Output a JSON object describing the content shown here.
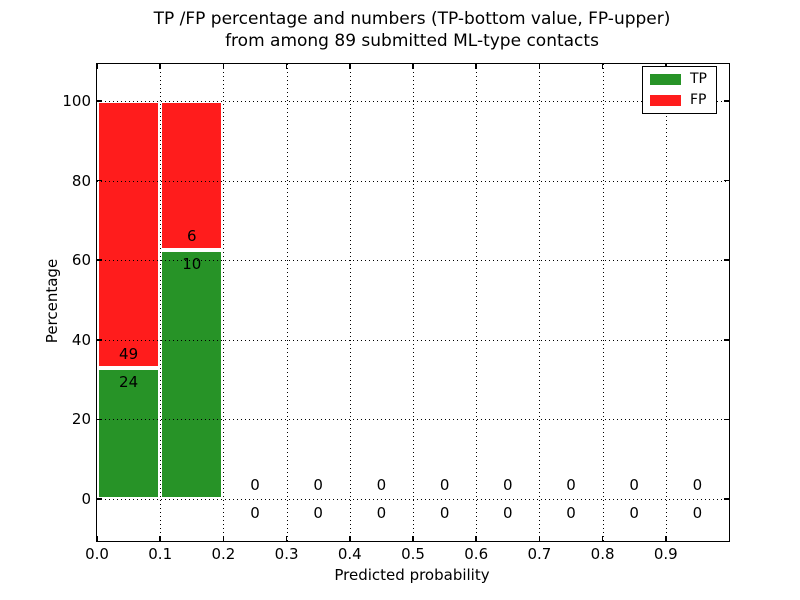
{
  "chart_data": {
    "type": "bar",
    "stacked": true,
    "title_line1": "TP /FP percentage and numbers (TP-bottom value, FP-upper)",
    "title_line2": "from among 89 submitted ML-type contacts",
    "total_submitted_contacts": 89,
    "xlabel": "Predicted probability",
    "ylabel": "Percentage",
    "xlim": [
      0.0,
      1.0
    ],
    "ylim": [
      -10.5,
      109.5
    ],
    "grid": "dotted, on top of bars",
    "xticks": [
      "0.0",
      "0.1",
      "0.2",
      "0.3",
      "0.4",
      "0.5",
      "0.6",
      "0.7",
      "0.8",
      "0.9"
    ],
    "yticks": [
      0,
      20,
      40,
      60,
      80,
      100
    ],
    "legend": {
      "position": "upper right",
      "entries": [
        {
          "label": "TP",
          "color": "#279327"
        },
        {
          "label": "FP",
          "color": "#ff1c1c"
        }
      ]
    },
    "bar_edge_color": "#ffffff",
    "bins": [
      {
        "range": [
          0.0,
          0.1
        ],
        "tp": 24,
        "fp": 49,
        "tp_pct": 32.9,
        "fp_pct": 67.1
      },
      {
        "range": [
          0.1,
          0.2
        ],
        "tp": 10,
        "fp": 6,
        "tp_pct": 62.5,
        "fp_pct": 37.5
      },
      {
        "range": [
          0.2,
          0.3
        ],
        "tp": 0,
        "fp": 0,
        "tp_pct": 0,
        "fp_pct": 0
      },
      {
        "range": [
          0.3,
          0.4
        ],
        "tp": 0,
        "fp": 0,
        "tp_pct": 0,
        "fp_pct": 0
      },
      {
        "range": [
          0.4,
          0.5
        ],
        "tp": 0,
        "fp": 0,
        "tp_pct": 0,
        "fp_pct": 0
      },
      {
        "range": [
          0.5,
          0.6
        ],
        "tp": 0,
        "fp": 0,
        "tp_pct": 0,
        "fp_pct": 0
      },
      {
        "range": [
          0.6,
          0.7
        ],
        "tp": 0,
        "fp": 0,
        "tp_pct": 0,
        "fp_pct": 0
      },
      {
        "range": [
          0.7,
          0.8
        ],
        "tp": 0,
        "fp": 0,
        "tp_pct": 0,
        "fp_pct": 0
      },
      {
        "range": [
          0.8,
          0.9
        ],
        "tp": 0,
        "fp": 0,
        "tp_pct": 0,
        "fp_pct": 0
      },
      {
        "range": [
          0.9,
          1.0
        ],
        "tp": 0,
        "fp": 0,
        "tp_pct": 0,
        "fp_pct": 0
      }
    ],
    "value_label_note": "TP count below segment boundary, FP count above segment boundary"
  }
}
